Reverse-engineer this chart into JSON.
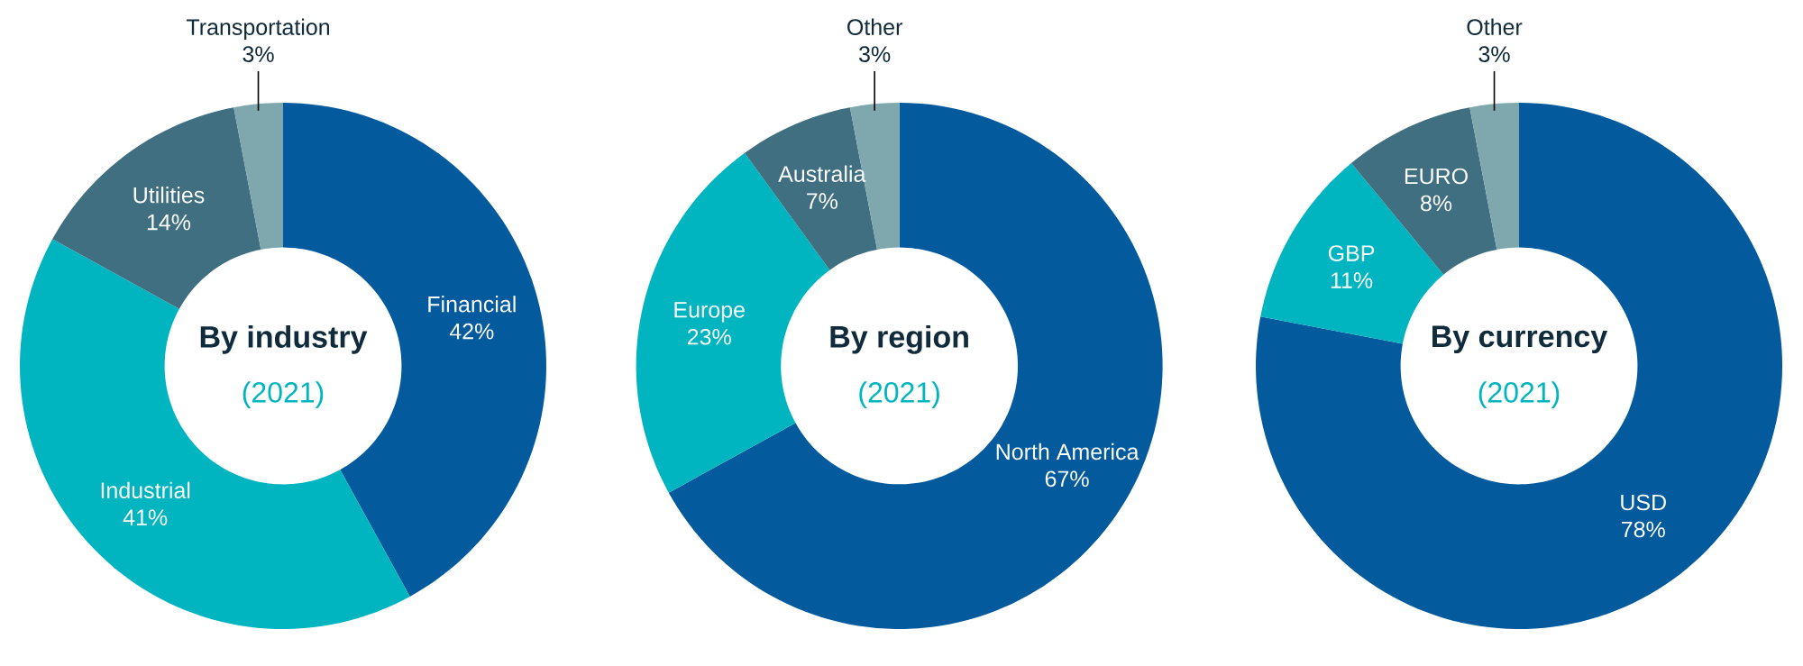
{
  "chart_data": [
    {
      "type": "donut",
      "title": "By industry",
      "subtitle": "(2021)",
      "categories": [
        "Financial",
        "Industrial",
        "Utilities",
        "Transportation"
      ],
      "values": [
        42,
        41,
        14,
        3
      ],
      "value_labels": [
        "42%",
        "41%",
        "14%",
        "3%"
      ],
      "colors": [
        "#035a9c",
        "#00b5c0",
        "#3f6f80",
        "#7ea7ae"
      ]
    },
    {
      "type": "donut",
      "title": "By region",
      "subtitle": "(2021)",
      "categories": [
        "North America",
        "Europe",
        "Australia",
        "Other"
      ],
      "values": [
        67,
        23,
        7,
        3
      ],
      "value_labels": [
        "67%",
        "23%",
        "7%",
        "3%"
      ],
      "colors": [
        "#035a9c",
        "#00b5c0",
        "#3f6f80",
        "#7ea7ae"
      ]
    },
    {
      "type": "donut",
      "title": "By currency",
      "subtitle": "(2021)",
      "categories": [
        "USD",
        "GBP",
        "EURO",
        "Other"
      ],
      "values": [
        78,
        11,
        8,
        3
      ],
      "value_labels": [
        "78%",
        "11%",
        "8%",
        "3%"
      ],
      "colors": [
        "#035a9c",
        "#00b5c0",
        "#3f6f80",
        "#7ea7ae"
      ]
    }
  ]
}
